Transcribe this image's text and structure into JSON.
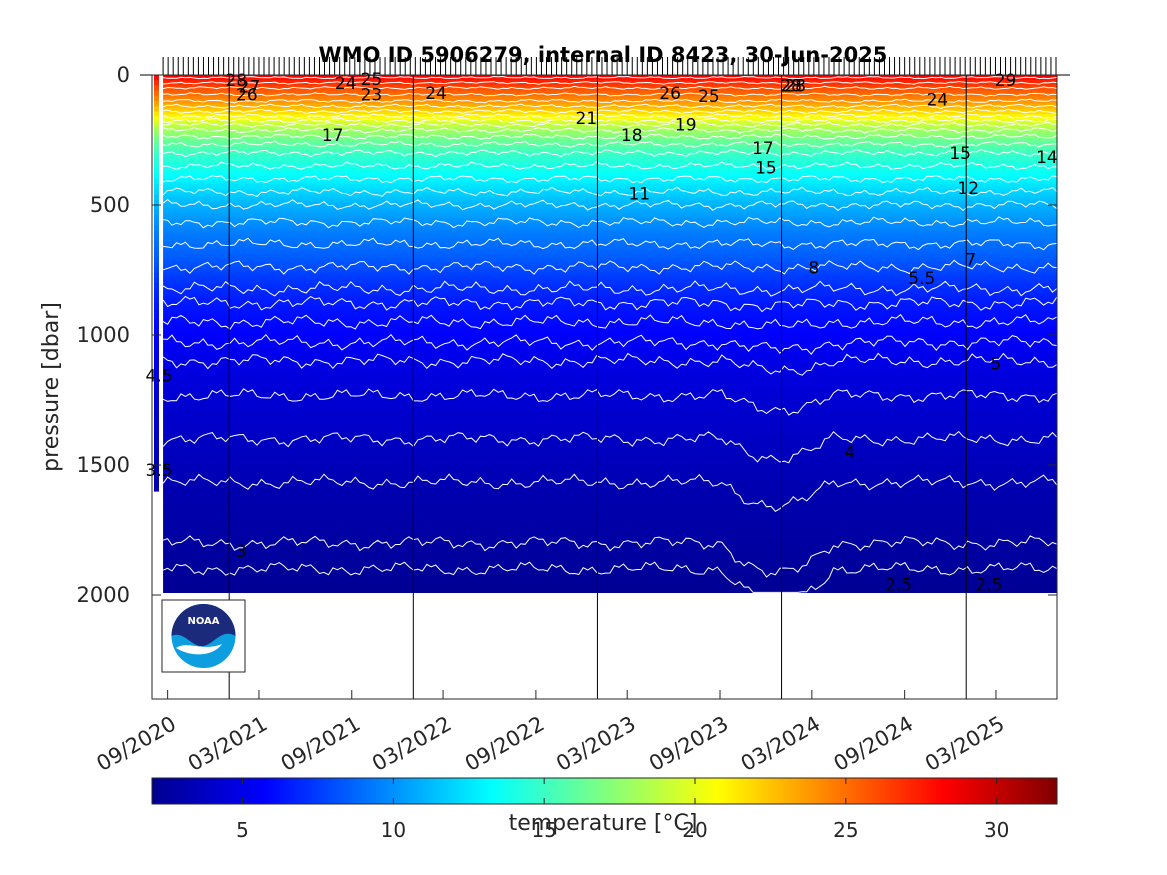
{
  "chart_data": {
    "type": "heatmap",
    "title": "WMO ID 5906279, internal ID 8423, 30-Jun-2025",
    "ylabel": "pressure [dbar]",
    "xlabel": "",
    "y_range": [
      0,
      2400
    ],
    "y_reversed": true,
    "y_ticks": [
      0,
      500,
      1000,
      1500,
      2000
    ],
    "x_range": [
      "2020-08-01",
      "2025-06-30"
    ],
    "x_ticks": [
      {
        "date": "2020-09-01",
        "label": "09/2020"
      },
      {
        "date": "2021-03-01",
        "label": "03/2021"
      },
      {
        "date": "2021-09-01",
        "label": "09/2021"
      },
      {
        "date": "2022-03-01",
        "label": "03/2022"
      },
      {
        "date": "2022-09-01",
        "label": "09/2022"
      },
      {
        "date": "2023-03-01",
        "label": "03/2023"
      },
      {
        "date": "2023-09-01",
        "label": "09/2023"
      },
      {
        "date": "2024-03-01",
        "label": "03/2024"
      },
      {
        "date": "2024-09-01",
        "label": "09/2024"
      },
      {
        "date": "2025-03-01",
        "label": "03/2025"
      }
    ],
    "year_lines": [
      "2021-01-01",
      "2022-01-01",
      "2023-01-01",
      "2024-01-01",
      "2025-01-01"
    ],
    "profile_max_pressure": 1990,
    "colorbar": {
      "label": "temperature [°C]",
      "range": [
        2,
        32
      ],
      "ticks": [
        5,
        10,
        15,
        20,
        25,
        30
      ],
      "colormap": "jet"
    },
    "temperature_profile": [
      {
        "p": 0,
        "t": 28.5
      },
      {
        "p": 50,
        "t": 26
      },
      {
        "p": 100,
        "t": 24
      },
      {
        "p": 150,
        "t": 21.5
      },
      {
        "p": 200,
        "t": 18.5
      },
      {
        "p": 250,
        "t": 16.5
      },
      {
        "p": 300,
        "t": 15
      },
      {
        "p": 400,
        "t": 13
      },
      {
        "p": 500,
        "t": 11
      },
      {
        "p": 600,
        "t": 9.5
      },
      {
        "p": 700,
        "t": 8.5
      },
      {
        "p": 800,
        "t": 7.2
      },
      {
        "p": 900,
        "t": 6.3
      },
      {
        "p": 1000,
        "t": 5.7
      },
      {
        "p": 1100,
        "t": 5
      },
      {
        "p": 1200,
        "t": 4.6
      },
      {
        "p": 1300,
        "t": 4.3
      },
      {
        "p": 1400,
        "t": 4
      },
      {
        "p": 1500,
        "t": 3.7
      },
      {
        "p": 1600,
        "t": 3.4
      },
      {
        "p": 1700,
        "t": 3.2
      },
      {
        "p": 1800,
        "t": 3
      },
      {
        "p": 1900,
        "t": 2.8
      },
      {
        "p": 2000,
        "t": 2.6
      }
    ],
    "contour_labels": [
      {
        "text": "28",
        "date": "2021-01-15",
        "p": 20
      },
      {
        "text": "27",
        "date": "2021-02-10",
        "p": 45
      },
      {
        "text": "26",
        "date": "2021-02-05",
        "p": 75
      },
      {
        "text": "24",
        "date": "2021-08-20",
        "p": 30
      },
      {
        "text": "25",
        "date": "2021-10-10",
        "p": 15
      },
      {
        "text": "23",
        "date": "2021-10-10",
        "p": 75
      },
      {
        "text": "24",
        "date": "2022-02-15",
        "p": 70
      },
      {
        "text": "17",
        "date": "2021-07-25",
        "p": 230
      },
      {
        "text": "21",
        "date": "2022-12-10",
        "p": 165
      },
      {
        "text": "18",
        "date": "2023-03-10",
        "p": 230
      },
      {
        "text": "26",
        "date": "2023-05-25",
        "p": 70
      },
      {
        "text": "19",
        "date": "2023-06-25",
        "p": 190
      },
      {
        "text": "25",
        "date": "2023-08-10",
        "p": 80
      },
      {
        "text": "11",
        "date": "2023-03-25",
        "p": 455
      },
      {
        "text": "17",
        "date": "2023-11-25",
        "p": 280
      },
      {
        "text": "15",
        "date": "2023-12-01",
        "p": 355
      },
      {
        "text": "28",
        "date": "2024-01-20",
        "p": 40
      },
      {
        "text": "28",
        "date": "2024-01-28",
        "p": 40
      },
      {
        "text": "8",
        "date": "2024-03-05",
        "p": 740
      },
      {
        "text": "24",
        "date": "2024-11-05",
        "p": 95
      },
      {
        "text": "29",
        "date": "2025-03-20",
        "p": 20
      },
      {
        "text": "15",
        "date": "2024-12-20",
        "p": 300
      },
      {
        "text": "12",
        "date": "2025-01-05",
        "p": 435
      },
      {
        "text": "14",
        "date": "2025-06-10",
        "p": 315
      },
      {
        "text": "7",
        "date": "2025-01-10",
        "p": 710
      },
      {
        "text": "5.5",
        "date": "2024-10-05",
        "p": 780
      },
      {
        "text": "5",
        "date": "2025-03-01",
        "p": 1110
      },
      {
        "text": "4.5",
        "date": "2020-08-15",
        "p": 1155
      },
      {
        "text": "4",
        "date": "2024-05-15",
        "p": 1450
      },
      {
        "text": "3.5",
        "date": "2020-08-15",
        "p": 1520
      },
      {
        "text": "3",
        "date": "2021-01-25",
        "p": 1830
      },
      {
        "text": "2.5",
        "date": "2024-08-20",
        "p": 1960
      },
      {
        "text": "2.5",
        "date": "2025-02-15",
        "p": 1960
      }
    ],
    "grid": false,
    "legend": "none",
    "logo": {
      "text": "NOAA"
    }
  }
}
